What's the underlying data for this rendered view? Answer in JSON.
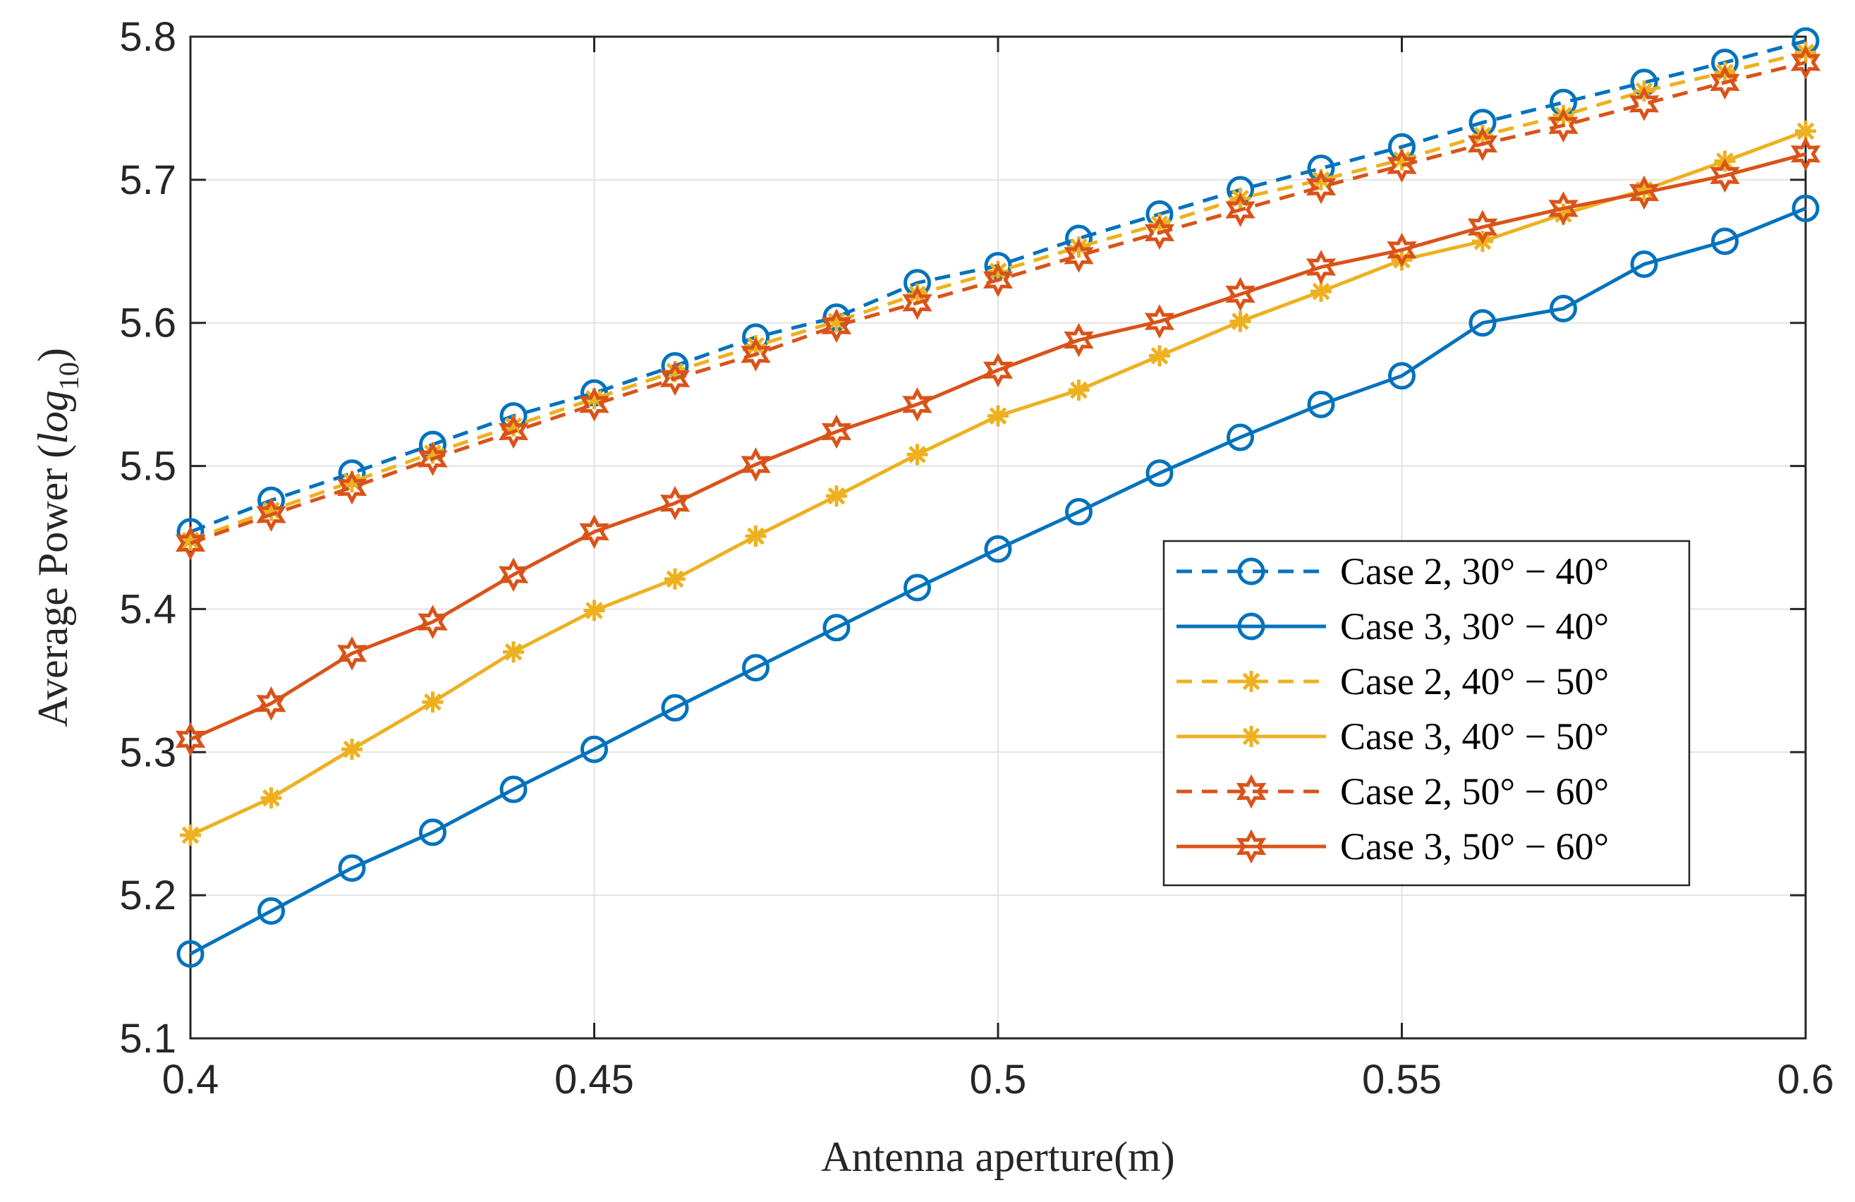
{
  "chart_data": {
    "type": "line",
    "title": "",
    "xlabel": "Antenna aperture(m)",
    "ylabel_main": "Average Power",
    "ylabel_log": "log",
    "ylabel_sub": "10",
    "xlim": [
      0.4,
      0.6
    ],
    "ylim": [
      5.1,
      5.8
    ],
    "grid": true,
    "legend_position": "center-right",
    "x_ticks": [
      0.4,
      0.45,
      0.5,
      0.55,
      0.6
    ],
    "x_tick_labels": [
      "0.4",
      "0.45",
      "0.5",
      "0.55",
      "0.6"
    ],
    "y_ticks": [
      5.1,
      5.2,
      5.3,
      5.4,
      5.5,
      5.6,
      5.7,
      5.8
    ],
    "y_tick_labels": [
      "5.1",
      "5.2",
      "5.3",
      "5.4",
      "5.5",
      "5.6",
      "5.7",
      "5.8"
    ],
    "x": [
      0.4,
      0.41,
      0.42,
      0.43,
      0.44,
      0.45,
      0.46,
      0.47,
      0.48,
      0.49,
      0.5,
      0.51,
      0.52,
      0.53,
      0.54,
      0.55,
      0.56,
      0.57,
      0.58,
      0.59,
      0.6
    ],
    "series": [
      {
        "name": "Case 2, 30° − 40°",
        "color": "#0072BD",
        "dash": "dashed",
        "marker": "circle",
        "values": [
          5.454,
          5.476,
          5.495,
          5.515,
          5.535,
          5.551,
          5.57,
          5.59,
          5.604,
          5.628,
          5.64,
          5.659,
          5.676,
          5.693,
          5.708,
          5.723,
          5.74,
          5.754,
          5.768,
          5.782,
          5.797
        ]
      },
      {
        "name": "Case 3, 30° − 40°",
        "color": "#0072BD",
        "dash": "solid",
        "marker": "circle",
        "values": [
          5.159,
          5.189,
          5.219,
          5.244,
          5.274,
          5.302,
          5.331,
          5.359,
          5.387,
          5.415,
          5.442,
          5.468,
          5.495,
          5.52,
          5.543,
          5.563,
          5.6,
          5.61,
          5.641,
          5.657,
          5.68
        ]
      },
      {
        "name": "Case 2, 40° − 50°",
        "color": "#EDB120",
        "dash": "dashed",
        "marker": "star",
        "values": [
          5.448,
          5.469,
          5.489,
          5.509,
          5.528,
          5.547,
          5.566,
          5.584,
          5.601,
          5.62,
          5.636,
          5.653,
          5.669,
          5.687,
          5.7,
          5.714,
          5.731,
          5.745,
          5.762,
          5.775,
          5.789
        ]
      },
      {
        "name": "Case 3, 40° − 50°",
        "color": "#EDB120",
        "dash": "solid",
        "marker": "star",
        "values": [
          5.242,
          5.268,
          5.302,
          5.335,
          5.37,
          5.399,
          5.421,
          5.451,
          5.479,
          5.508,
          5.535,
          5.553,
          5.577,
          5.601,
          5.622,
          5.644,
          5.657,
          5.676,
          5.693,
          5.713,
          5.734
        ]
      },
      {
        "name": "Case 2, 50° − 60°",
        "color": "#D95319",
        "dash": "dashed",
        "marker": "hexagram",
        "values": [
          5.446,
          5.466,
          5.485,
          5.505,
          5.524,
          5.543,
          5.561,
          5.578,
          5.598,
          5.614,
          5.63,
          5.647,
          5.663,
          5.679,
          5.695,
          5.71,
          5.725,
          5.738,
          5.753,
          5.768,
          5.782
        ]
      },
      {
        "name": "Case 3, 50° − 60°",
        "color": "#D95319",
        "dash": "solid",
        "marker": "hexagram",
        "values": [
          5.309,
          5.334,
          5.369,
          5.391,
          5.424,
          5.454,
          5.474,
          5.501,
          5.524,
          5.543,
          5.567,
          5.588,
          5.601,
          5.62,
          5.639,
          5.651,
          5.667,
          5.68,
          5.691,
          5.703,
          5.718
        ]
      }
    ]
  }
}
